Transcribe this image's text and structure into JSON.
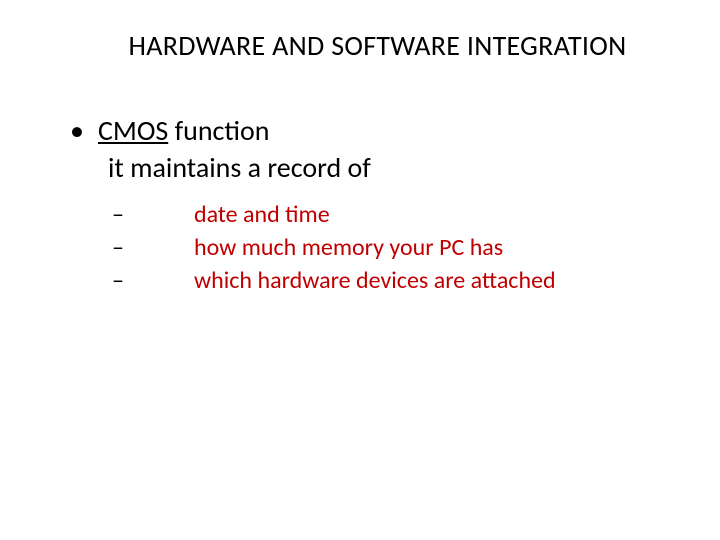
{
  "slide": {
    "title": "HARDWARE AND SOFTWARE INTEGRATION",
    "bullet": {
      "term": "CMOS",
      "rest": "  function"
    },
    "subtitle": "it maintains a record of",
    "items": [
      "date and time",
      "how much memory your PC has",
      "which hardware devices are attached"
    ],
    "colors": {
      "background": "#ffffff",
      "text_primary": "#000000",
      "text_accent": "#c00000"
    },
    "typography": {
      "title_fontsize": 28,
      "body_fontsize": 28,
      "sub_fontsize": 24,
      "font_family": "Calibri"
    }
  }
}
